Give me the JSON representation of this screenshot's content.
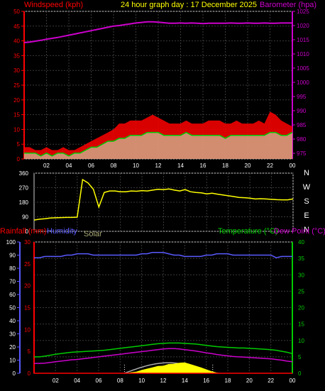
{
  "header": {
    "windspeed_label": "Windspeed (kph)",
    "title": "24 hour graph day : 17 December 2025",
    "barometer_label": "Barometer (hpa)"
  },
  "labels": {
    "rainfall": "Rainfall (mm)",
    "humidity": "Humidity",
    "solar": "Solar",
    "temperature": "Temperature (°C)",
    "dewpoint": "Dew Point (°C)"
  },
  "x_ticks": [
    "02",
    "04",
    "06",
    "08",
    "10",
    "12",
    "14",
    "16",
    "18",
    "20",
    "22",
    "00"
  ],
  "colors": {
    "wind": "#ff0000",
    "gust": "#ff0000",
    "barometer": "#cc00cc",
    "direction": "#ffff00",
    "temperature": "#00cc00",
    "dewpoint": "#cc00cc",
    "humidity": "#5a5aff",
    "solar": "#ffff00",
    "solar_max": "#aaaaaa",
    "rain": "#ff0000",
    "grid": "#3a3a3a"
  },
  "chart_data": [
    {
      "type": "line",
      "name": "wind-barometer",
      "x_hours": [
        0,
        0.5,
        1,
        1.5,
        2,
        2.5,
        3,
        3.5,
        4,
        4.5,
        5,
        5.5,
        6,
        6.5,
        7,
        7.5,
        8,
        8.5,
        9,
        9.5,
        10,
        10.5,
        11,
        11.5,
        12,
        12.5,
        13,
        13.5,
        14,
        14.5,
        15,
        15.5,
        16,
        16.5,
        17,
        17.5,
        18,
        18.5,
        19,
        19.5,
        20,
        20.5,
        21,
        21.5,
        22,
        22.5,
        23,
        23.5,
        24
      ],
      "series": [
        {
          "name": "Windspeed (kph)",
          "axis": "left",
          "values": [
            2,
            2,
            2,
            1,
            2,
            1,
            2,
            2,
            1,
            2,
            2,
            3,
            4,
            4,
            5,
            6,
            6,
            7,
            7,
            8,
            8,
            8,
            9,
            9,
            9,
            8,
            8,
            8,
            8,
            9,
            8,
            8,
            8,
            8,
            8,
            8,
            7,
            8,
            8,
            8,
            8,
            8,
            8,
            8,
            9,
            9,
            8,
            8,
            9
          ]
        },
        {
          "name": "Gust (kph)",
          "axis": "left",
          "values": [
            4,
            4,
            3,
            3,
            4,
            3,
            3,
            4,
            3,
            3,
            4,
            5,
            6,
            7,
            8,
            9,
            10,
            12,
            12,
            13,
            13,
            13,
            14,
            15,
            14,
            13,
            12,
            12,
            12,
            13,
            12,
            12,
            12,
            13,
            13,
            13,
            12,
            12,
            13,
            12,
            12,
            12,
            13,
            12,
            16,
            15,
            13,
            12,
            11
          ]
        },
        {
          "name": "Barometer (hpa)",
          "axis": "right",
          "values": [
            1014,
            1014.2,
            1014.5,
            1014.8,
            1015.2,
            1015.5,
            1015.8,
            1016.2,
            1016.6,
            1017,
            1017.4,
            1017.8,
            1018.2,
            1018.6,
            1019,
            1019.4,
            1019.8,
            1020,
            1020.3,
            1020.6,
            1020.9,
            1021.1,
            1021.3,
            1021.3,
            1021.2,
            1021,
            1020.8,
            1020.8,
            1020.9,
            1020.8,
            1020.9,
            1020.8,
            1020.7,
            1020.8,
            1020.8,
            1020.8,
            1020.8,
            1020.9,
            1020.8,
            1020.8,
            1020.9,
            1020.8,
            1020.8,
            1020.9,
            1020.8,
            1020.8,
            1020.9,
            1020.9,
            1020.9
          ]
        }
      ],
      "y_left_ticks": [
        0,
        5,
        10,
        15,
        20,
        25,
        30,
        35,
        40,
        45,
        50
      ],
      "ylim_left": [
        0,
        50
      ],
      "y_right_ticks": [
        975,
        980,
        985,
        990,
        995,
        1000,
        1005,
        1010,
        1015,
        1020,
        1025
      ],
      "ylim_right": [
        973,
        1025
      ],
      "xlim": [
        0,
        24
      ]
    },
    {
      "type": "line",
      "name": "wind-direction",
      "x_hours": [
        0,
        0.5,
        1,
        1.5,
        2,
        2.5,
        3,
        3.5,
        4,
        4.5,
        5,
        5.5,
        6,
        6.5,
        7,
        7.5,
        8,
        8.5,
        9,
        9.5,
        10,
        10.5,
        11,
        11.5,
        12,
        12.5,
        13,
        13.5,
        14,
        14.5,
        15,
        15.5,
        16,
        16.5,
        17,
        17.5,
        18,
        18.5,
        19,
        19.5,
        20,
        20.5,
        21,
        21.5,
        22,
        22.5,
        23,
        23.5,
        24
      ],
      "series": [
        {
          "name": "Direction",
          "values": [
            70,
            75,
            78,
            82,
            84,
            85,
            86,
            86,
            88,
            320,
            300,
            260,
            150,
            240,
            250,
            250,
            245,
            245,
            250,
            248,
            252,
            250,
            255,
            260,
            258,
            262,
            255,
            250,
            258,
            245,
            240,
            238,
            232,
            236,
            230,
            225,
            220,
            215,
            210,
            208,
            205,
            200,
            202,
            200,
            198,
            196,
            195,
            195,
            200
          ]
        }
      ],
      "y_ticks": [
        0,
        90,
        180,
        270,
        360
      ],
      "ylim": [
        0,
        360
      ],
      "compass": [
        "N",
        "W",
        "S",
        "E",
        "N"
      ],
      "xlim": [
        0,
        24
      ]
    },
    {
      "type": "line",
      "name": "rain-humidity-temp",
      "x_hours": [
        0,
        0.5,
        1,
        1.5,
        2,
        2.5,
        3,
        3.5,
        4,
        4.5,
        5,
        5.5,
        6,
        6.5,
        7,
        7.5,
        8,
        8.5,
        9,
        9.5,
        10,
        10.5,
        11,
        11.5,
        12,
        12.5,
        13,
        13.5,
        14,
        14.5,
        15,
        15.5,
        16,
        16.5,
        17,
        17.5,
        18,
        18.5,
        19,
        19.5,
        20,
        20.5,
        21,
        21.5,
        22,
        22.5,
        23,
        23.5,
        24
      ],
      "series": [
        {
          "name": "Humidity",
          "axis": "humidity",
          "values": [
            88,
            88,
            89,
            89,
            89,
            89,
            90,
            90,
            91,
            91,
            91,
            90,
            90,
            90,
            90,
            90,
            90,
            90,
            90,
            90,
            91,
            91,
            92,
            92,
            92,
            91,
            90,
            90,
            89,
            89,
            89,
            89,
            90,
            90,
            91,
            91,
            91,
            90,
            90,
            90,
            90,
            90,
            90,
            90,
            90,
            88,
            89,
            89,
            89
          ]
        },
        {
          "name": "Temperature (°C)",
          "axis": "temperature",
          "values": [
            5,
            5,
            5.2,
            5.5,
            5.8,
            6,
            6.2,
            6.4,
            6.5,
            6.6,
            6.7,
            6.8,
            6.9,
            7,
            7.2,
            7.4,
            7.6,
            7.8,
            8,
            8.2,
            8.4,
            8.6,
            8.8,
            9,
            9.1,
            9.2,
            9.2,
            9.2,
            9.1,
            9,
            8.9,
            8.7,
            8.5,
            8.3,
            8.1,
            8,
            7.9,
            7.8,
            7.7,
            7.7,
            7.6,
            7.5,
            7.4,
            7.3,
            7.2,
            7,
            6.7,
            6.4,
            6
          ]
        },
        {
          "name": "Dew Point (°C)",
          "axis": "temperature",
          "values": [
            3,
            3,
            3.1,
            3.3,
            3.5,
            3.7,
            3.9,
            4.1,
            4.2,
            4.4,
            4.6,
            4.8,
            5,
            5.2,
            5.4,
            5.6,
            5.8,
            6,
            6.2,
            6.4,
            6.6,
            6.8,
            7,
            7.2,
            7.4,
            7.5,
            7.5,
            7.4,
            7.2,
            7,
            6.8,
            6.5,
            6.2,
            6,
            5.7,
            5.5,
            5.3,
            5.1,
            5,
            4.9,
            4.8,
            4.7,
            4.6,
            4.5,
            4.4,
            4.2,
            4,
            3.7,
            3.5
          ]
        },
        {
          "name": "Solar",
          "axis": "temperature",
          "values": [
            0,
            0,
            0,
            0,
            0,
            0,
            0,
            0,
            0,
            0,
            0,
            0,
            0,
            0,
            0,
            0,
            0,
            0,
            0.3,
            0.5,
            1,
            1.4,
            1.8,
            2.2,
            2.3,
            2.8,
            2.9,
            3.2,
            3.3,
            2.8,
            2.3,
            1.8,
            1.2,
            0.6,
            0.2,
            0,
            0,
            0,
            0,
            0,
            0,
            0,
            0,
            0,
            0,
            0,
            0,
            0,
            0
          ]
        },
        {
          "name": "Rainfall (mm)",
          "axis": "rain",
          "values": [
            0,
            0,
            0,
            0,
            0,
            0,
            0,
            0,
            0,
            0,
            0,
            0,
            0,
            0,
            0,
            0,
            0,
            0,
            0,
            0,
            0,
            0,
            0,
            0,
            0,
            0,
            0,
            0,
            0,
            0,
            0,
            0,
            0,
            0,
            0,
            0,
            0,
            0,
            0,
            0,
            0,
            0,
            0,
            0,
            0,
            0,
            0,
            0,
            0
          ]
        }
      ],
      "rain_ticks": [
        0,
        5,
        10,
        15,
        20,
        25,
        30
      ],
      "ylim_rain": [
        0,
        30
      ],
      "humidity_ticks": [
        0,
        10,
        20,
        30,
        40,
        50,
        60,
        70,
        80,
        90,
        100
      ],
      "ylim_humidity": [
        0,
        100
      ],
      "temperature_ticks": [
        0,
        5,
        10,
        15,
        20,
        25,
        30,
        35,
        40
      ],
      "ylim_temperature": [
        0,
        40
      ],
      "xlim": [
        0,
        24
      ]
    }
  ]
}
